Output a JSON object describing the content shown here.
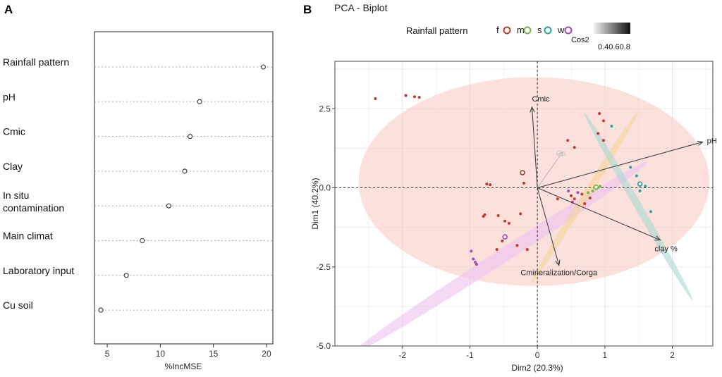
{
  "figure": {
    "panel_a": "A",
    "panel_b": "B"
  },
  "colors": {
    "f": "#c0392b",
    "m": "#7cb342",
    "s": "#26a69a",
    "w": "#ab47bc",
    "ell_f": "#f8c6c0",
    "ell_m": "#f5d59a",
    "ell_s": "#a8d8d2",
    "ell_w": "#efc2f0",
    "arrow_dark": "#444444",
    "arrow_light": "#bbbbbb"
  },
  "chart_data": [
    {
      "type": "scatter",
      "subtype": "dot-plot",
      "title": "",
      "xlabel": "%IncMSE",
      "ylabel": "",
      "xlim": [
        3.8,
        20.6
      ],
      "xticks": [
        5,
        10,
        15,
        20
      ],
      "categories": [
        "Rainfall pattern",
        "pH",
        "Cmic",
        "Clay",
        "In situ contamination",
        "Main climat",
        "Laboratory input",
        "Cu soil"
      ],
      "category_lines": [
        [
          "Rainfall pattern"
        ],
        [
          "pH"
        ],
        [
          "Cmic"
        ],
        [
          "Clay"
        ],
        [
          "In situ",
          "contamination"
        ],
        [
          "Main climat"
        ],
        [
          "Laboratory input"
        ],
        [
          "Cu soil"
        ]
      ],
      "values": [
        19.7,
        13.7,
        12.8,
        12.3,
        10.8,
        8.3,
        6.8,
        4.4
      ]
    },
    {
      "type": "scatter",
      "subtype": "pca-biplot",
      "title": "PCA - Biplot",
      "xlabel": "Dim2 (20.3%)",
      "ylabel": "Dim1 (40.2%)",
      "xlim": [
        -3.0,
        2.6
      ],
      "ylim": [
        -5.0,
        4.0
      ],
      "xticks": [
        -2,
        -1,
        0,
        1,
        2
      ],
      "yticks": [
        2.5,
        0.0,
        -2.5,
        -5.0
      ],
      "ytick_labels": [
        "2.5",
        "0.0",
        "-2.5",
        "-5.0"
      ],
      "legend": {
        "title": "Rainfall pattern",
        "groups": [
          "f",
          "m",
          "s",
          "w"
        ],
        "cos2_title": "Cos2",
        "cos2_labels": "0.40.60.8",
        "position": "top"
      },
      "ellipses": [
        {
          "group": "f",
          "cx": -0.05,
          "cy": 0.2,
          "rx": 2.6,
          "ry": 3.3,
          "rot": 0
        },
        {
          "group": "w",
          "cx": -0.55,
          "cy": -2.2,
          "rx": 2.6,
          "ry": 0.22,
          "rot": -33
        },
        {
          "group": "m",
          "cx": 0.7,
          "cy": -0.3,
          "rx": 1.5,
          "ry": 0.12,
          "rot": -58
        },
        {
          "group": "s",
          "cx": 1.5,
          "cy": -0.6,
          "rx": 1.6,
          "ry": 0.12,
          "rot": 60
        }
      ],
      "arrows": [
        {
          "label": "Cmic",
          "x": -0.08,
          "y": 2.55,
          "shade": "dark"
        },
        {
          "label": "Cu",
          "x": 0.38,
          "y": 1.15,
          "shade": "light"
        },
        {
          "label": "pH",
          "x": 2.45,
          "y": 1.45,
          "shade": "dark"
        },
        {
          "label": "clay %",
          "x": 1.82,
          "y": -1.65,
          "shade": "dark"
        },
        {
          "label": "Cmineralization/Corga",
          "x": 0.32,
          "y": -2.45,
          "shade": "dark"
        }
      ],
      "points": [
        {
          "x": -2.4,
          "y": 2.82,
          "g": "f"
        },
        {
          "x": -1.95,
          "y": 2.92,
          "g": "f"
        },
        {
          "x": -1.82,
          "y": 2.88,
          "g": "f"
        },
        {
          "x": -1.75,
          "y": 2.86,
          "g": "f"
        },
        {
          "x": 0.92,
          "y": 2.35,
          "g": "f"
        },
        {
          "x": 0.98,
          "y": 2.12,
          "g": "f"
        },
        {
          "x": 0.9,
          "y": 1.72,
          "g": "f"
        },
        {
          "x": 0.98,
          "y": 1.5,
          "g": "f"
        },
        {
          "x": 0.45,
          "y": 1.5,
          "g": "f"
        },
        {
          "x": 0.55,
          "y": 1.28,
          "g": "f"
        },
        {
          "x": -0.22,
          "y": 0.48,
          "g": "f",
          "big": true
        },
        {
          "x": -0.2,
          "y": 0.15,
          "g": "f"
        },
        {
          "x": -0.75,
          "y": 0.12,
          "g": "f"
        },
        {
          "x": -0.7,
          "y": 0.1,
          "g": "f"
        },
        {
          "x": -0.8,
          "y": -0.9,
          "g": "f"
        },
        {
          "x": -0.78,
          "y": -0.85,
          "g": "f"
        },
        {
          "x": -0.58,
          "y": -0.88,
          "g": "f"
        },
        {
          "x": -0.48,
          "y": -1.05,
          "g": "f"
        },
        {
          "x": -0.42,
          "y": -1.12,
          "g": "f"
        },
        {
          "x": -0.25,
          "y": -0.82,
          "g": "f"
        },
        {
          "x": -0.52,
          "y": -1.68,
          "g": "f"
        },
        {
          "x": -0.3,
          "y": -1.82,
          "g": "f"
        },
        {
          "x": -0.6,
          "y": -1.95,
          "g": "f"
        },
        {
          "x": -0.15,
          "y": -1.95,
          "g": "f"
        },
        {
          "x": 0.3,
          "y": -0.35,
          "g": "f"
        },
        {
          "x": 0.5,
          "y": -0.25,
          "g": "f"
        },
        {
          "x": 0.55,
          "y": -0.35,
          "g": "f"
        },
        {
          "x": 0.66,
          "y": -0.2,
          "g": "f"
        },
        {
          "x": 0.7,
          "y": -0.5,
          "g": "f"
        },
        {
          "x": 0.78,
          "y": -0.32,
          "g": "f"
        },
        {
          "x": 0.82,
          "y": -0.1,
          "g": "m"
        },
        {
          "x": 0.87,
          "y": 0.02,
          "g": "m",
          "big": true
        },
        {
          "x": 0.93,
          "y": 0.05,
          "g": "m"
        },
        {
          "x": 0.75,
          "y": -0.15,
          "g": "m"
        },
        {
          "x": 1.1,
          "y": 1.95,
          "g": "s"
        },
        {
          "x": 1.38,
          "y": 0.65,
          "g": "s"
        },
        {
          "x": 1.47,
          "y": 0.38,
          "g": "s"
        },
        {
          "x": 1.52,
          "y": 0.12,
          "g": "s",
          "big": true
        },
        {
          "x": 1.52,
          "y": -0.1,
          "g": "s"
        },
        {
          "x": 1.6,
          "y": 0.05,
          "g": "s"
        },
        {
          "x": 1.68,
          "y": -0.75,
          "g": "s"
        },
        {
          "x": 0.46,
          "y": -0.1,
          "g": "w"
        },
        {
          "x": 0.6,
          "y": -0.15,
          "g": "w"
        },
        {
          "x": 0.52,
          "y": -0.45,
          "g": "w"
        },
        {
          "x": -0.48,
          "y": -1.55,
          "g": "w",
          "big": true
        },
        {
          "x": -0.98,
          "y": -2.0,
          "g": "w"
        },
        {
          "x": -0.95,
          "y": -2.25,
          "g": "w"
        },
        {
          "x": -0.92,
          "y": -2.35,
          "g": "w"
        },
        {
          "x": -0.9,
          "y": -2.42,
          "g": "w"
        }
      ]
    }
  ]
}
